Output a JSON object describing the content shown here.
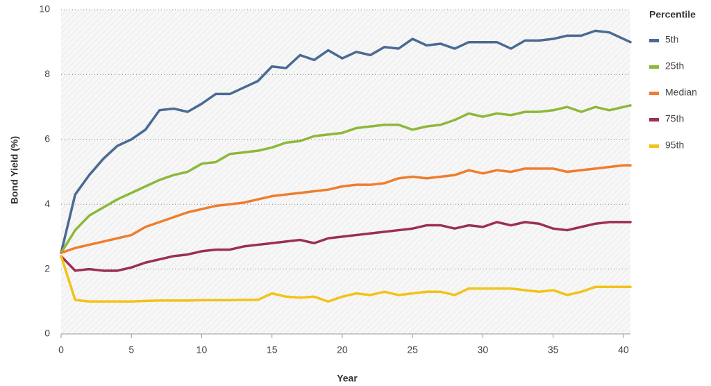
{
  "chart_data": {
    "type": "line",
    "x_label": "Year",
    "y_label": "Bond Yield (%)",
    "legend_title": "Percentile",
    "legend_position": "right",
    "x": [
      0,
      1,
      2,
      3,
      4,
      5,
      6,
      7,
      8,
      9,
      10,
      11,
      12,
      13,
      14,
      15,
      16,
      17,
      18,
      19,
      20,
      21,
      22,
      23,
      24,
      25,
      26,
      27,
      28,
      29,
      30,
      31,
      32,
      33,
      34,
      35,
      36,
      37,
      38,
      39,
      40,
      40.5
    ],
    "series": [
      {
        "name": "5th",
        "color": "#4a6a94",
        "values": [
          2.5,
          4.3,
          4.9,
          5.4,
          5.8,
          6.0,
          6.3,
          6.9,
          6.95,
          6.85,
          7.1,
          7.4,
          7.4,
          7.6,
          7.8,
          8.25,
          8.2,
          8.6,
          8.45,
          8.75,
          8.5,
          8.7,
          8.6,
          8.85,
          8.8,
          9.1,
          8.9,
          8.95,
          8.8,
          9.0,
          9.0,
          9.0,
          8.8,
          9.05,
          9.05,
          9.1,
          9.2,
          9.2,
          9.35,
          9.3,
          9.1,
          9.0
        ]
      },
      {
        "name": "25th",
        "color": "#8db83a",
        "values": [
          2.5,
          3.2,
          3.65,
          3.9,
          4.15,
          4.35,
          4.55,
          4.75,
          4.9,
          5.0,
          5.25,
          5.3,
          5.55,
          5.6,
          5.65,
          5.75,
          5.9,
          5.95,
          6.1,
          6.15,
          6.2,
          6.35,
          6.4,
          6.45,
          6.45,
          6.3,
          6.4,
          6.45,
          6.6,
          6.8,
          6.7,
          6.8,
          6.75,
          6.85,
          6.85,
          6.9,
          7.0,
          6.85,
          7.0,
          6.9,
          7.0,
          7.05
        ]
      },
      {
        "name": "Median",
        "color": "#ef7d2d",
        "values": [
          2.5,
          2.65,
          2.75,
          2.85,
          2.95,
          3.05,
          3.3,
          3.45,
          3.6,
          3.75,
          3.85,
          3.95,
          4.0,
          4.05,
          4.15,
          4.25,
          4.3,
          4.35,
          4.4,
          4.45,
          4.55,
          4.6,
          4.6,
          4.65,
          4.8,
          4.85,
          4.8,
          4.85,
          4.9,
          5.05,
          4.95,
          5.05,
          5.0,
          5.1,
          5.1,
          5.1,
          5.0,
          5.05,
          5.1,
          5.15,
          5.2,
          5.2
        ]
      },
      {
        "name": "75th",
        "color": "#9b2f55",
        "values": [
          2.4,
          1.95,
          2.0,
          1.95,
          1.95,
          2.05,
          2.2,
          2.3,
          2.4,
          2.45,
          2.55,
          2.6,
          2.6,
          2.7,
          2.75,
          2.8,
          2.85,
          2.9,
          2.8,
          2.95,
          3.0,
          3.05,
          3.1,
          3.15,
          3.2,
          3.25,
          3.35,
          3.35,
          3.25,
          3.35,
          3.3,
          3.45,
          3.35,
          3.45,
          3.4,
          3.25,
          3.2,
          3.3,
          3.4,
          3.45,
          3.45,
          3.45
        ]
      },
      {
        "name": "95th",
        "color": "#f2c318",
        "values": [
          2.4,
          1.05,
          1.0,
          1.0,
          1.0,
          1.0,
          1.02,
          1.03,
          1.03,
          1.03,
          1.04,
          1.04,
          1.04,
          1.05,
          1.05,
          1.25,
          1.15,
          1.12,
          1.15,
          1.0,
          1.15,
          1.25,
          1.2,
          1.3,
          1.2,
          1.25,
          1.3,
          1.3,
          1.2,
          1.4,
          1.4,
          1.4,
          1.4,
          1.35,
          1.3,
          1.35,
          1.2,
          1.3,
          1.45,
          1.45,
          1.45,
          1.45
        ]
      }
    ],
    "xlim": [
      0,
      40.5
    ],
    "xticks": [
      0,
      5,
      10,
      15,
      20,
      25,
      30,
      35,
      40
    ],
    "ylim": [
      0,
      10
    ],
    "yticks": [
      0,
      2,
      4,
      6,
      8,
      10
    ],
    "grid": true
  }
}
